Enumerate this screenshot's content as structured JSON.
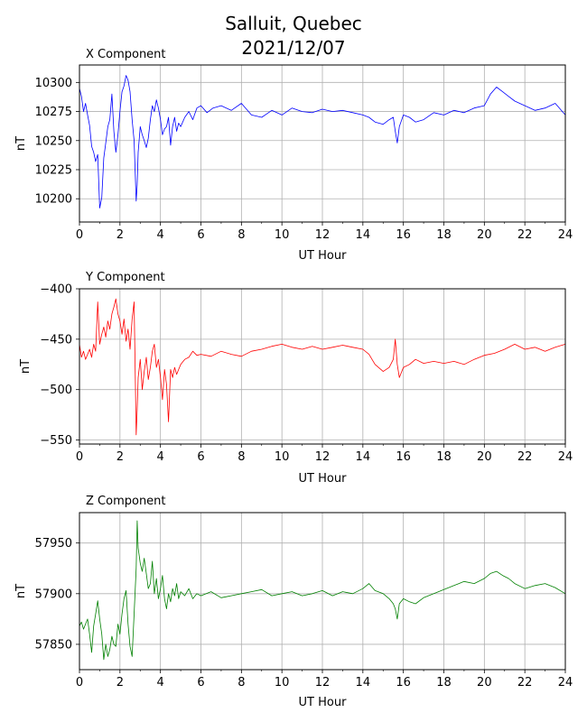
{
  "figure": {
    "title_line1": "Salluit, Quebec",
    "title_line2": "2021/12/07"
  },
  "chart_data": [
    {
      "type": "line",
      "title": "X Component",
      "xlabel": "UT Hour",
      "ylabel": "nT",
      "xlim": [
        0,
        24
      ],
      "ylim": [
        10180,
        10315
      ],
      "xticks": [
        0,
        2,
        4,
        6,
        8,
        10,
        12,
        14,
        16,
        18,
        20,
        22,
        24
      ],
      "yticks": [
        10200,
        10225,
        10250,
        10275,
        10300
      ],
      "grid": true,
      "color": "#0000ff",
      "x": [
        0,
        0.1,
        0.2,
        0.3,
        0.4,
        0.5,
        0.6,
        0.7,
        0.8,
        0.9,
        1.0,
        1.1,
        1.2,
        1.3,
        1.4,
        1.5,
        1.6,
        1.7,
        1.8,
        1.9,
        2.0,
        2.1,
        2.2,
        2.3,
        2.4,
        2.5,
        2.6,
        2.7,
        2.8,
        2.85,
        2.9,
        3.0,
        3.1,
        3.2,
        3.3,
        3.4,
        3.5,
        3.6,
        3.7,
        3.8,
        3.9,
        4.0,
        4.1,
        4.2,
        4.3,
        4.4,
        4.5,
        4.6,
        4.7,
        4.8,
        4.9,
        5.0,
        5.2,
        5.4,
        5.6,
        5.8,
        6.0,
        6.3,
        6.6,
        7.0,
        7.5,
        8.0,
        8.5,
        9.0,
        9.5,
        10.0,
        10.5,
        11.0,
        11.5,
        12.0,
        12.5,
        13.0,
        13.5,
        14.0,
        14.3,
        14.6,
        15.0,
        15.3,
        15.5,
        15.6,
        15.7,
        15.8,
        16.0,
        16.3,
        16.6,
        17.0,
        17.5,
        18.0,
        18.5,
        19.0,
        19.5,
        20.0,
        20.3,
        20.6,
        20.9,
        21.2,
        21.5,
        22.0,
        22.5,
        23.0,
        23.5,
        24.0
      ],
      "y": [
        10295,
        10288,
        10275,
        10282,
        10272,
        10263,
        10245,
        10240,
        10232,
        10238,
        10192,
        10201,
        10235,
        10248,
        10262,
        10268,
        10290,
        10258,
        10240,
        10255,
        10275,
        10292,
        10297,
        10306,
        10302,
        10292,
        10268,
        10250,
        10198,
        10212,
        10240,
        10262,
        10255,
        10250,
        10244,
        10252,
        10268,
        10280,
        10275,
        10285,
        10278,
        10268,
        10255,
        10260,
        10262,
        10270,
        10246,
        10262,
        10270,
        10258,
        10265,
        10262,
        10270,
        10275,
        10268,
        10278,
        10280,
        10274,
        10278,
        10280,
        10276,
        10282,
        10272,
        10270,
        10276,
        10272,
        10278,
        10275,
        10274,
        10277,
        10275,
        10276,
        10274,
        10272,
        10270,
        10266,
        10264,
        10268,
        10270,
        10258,
        10248,
        10262,
        10272,
        10270,
        10266,
        10268,
        10274,
        10272,
        10276,
        10274,
        10278,
        10280,
        10290,
        10296,
        10292,
        10288,
        10284,
        10280,
        10276,
        10278,
        10282,
        10272
      ]
    },
    {
      "type": "line",
      "title": "Y Component",
      "xlabel": "UT Hour",
      "ylabel": "nT",
      "xlim": [
        0,
        24
      ],
      "ylim": [
        -554,
        -400
      ],
      "xticks": [
        0,
        2,
        4,
        6,
        8,
        10,
        12,
        14,
        16,
        18,
        20,
        22,
        24
      ],
      "yticks": [
        -550,
        -500,
        -450,
        -400
      ],
      "grid": true,
      "color": "#ff0000",
      "x": [
        0,
        0.1,
        0.2,
        0.3,
        0.4,
        0.5,
        0.6,
        0.7,
        0.8,
        0.9,
        1.0,
        1.1,
        1.2,
        1.3,
        1.4,
        1.5,
        1.6,
        1.7,
        1.8,
        1.9,
        2.0,
        2.1,
        2.2,
        2.3,
        2.4,
        2.5,
        2.6,
        2.7,
        2.8,
        2.85,
        2.9,
        3.0,
        3.1,
        3.2,
        3.3,
        3.4,
        3.5,
        3.6,
        3.7,
        3.8,
        3.9,
        4.0,
        4.1,
        4.2,
        4.3,
        4.4,
        4.5,
        4.6,
        4.7,
        4.8,
        4.9,
        5.0,
        5.2,
        5.4,
        5.6,
        5.8,
        6.0,
        6.5,
        7.0,
        7.5,
        8.0,
        8.5,
        9.0,
        9.5,
        10.0,
        10.5,
        11.0,
        11.5,
        12.0,
        12.5,
        13.0,
        13.5,
        14.0,
        14.3,
        14.6,
        15.0,
        15.3,
        15.5,
        15.6,
        15.7,
        15.8,
        16.0,
        16.3,
        16.6,
        17.0,
        17.5,
        18.0,
        18.5,
        19.0,
        19.5,
        20.0,
        20.5,
        21.0,
        21.5,
        22.0,
        22.5,
        23.0,
        23.5,
        24.0
      ],
      "y": [
        -455,
        -468,
        -462,
        -470,
        -465,
        -460,
        -468,
        -455,
        -462,
        -413,
        -455,
        -445,
        -438,
        -448,
        -432,
        -440,
        -425,
        -418,
        -410,
        -425,
        -432,
        -445,
        -430,
        -452,
        -440,
        -460,
        -430,
        -413,
        -545,
        -520,
        -488,
        -470,
        -500,
        -482,
        -468,
        -490,
        -478,
        -462,
        -455,
        -478,
        -470,
        -488,
        -510,
        -480,
        -495,
        -532,
        -480,
        -488,
        -478,
        -485,
        -480,
        -475,
        -470,
        -468,
        -462,
        -466,
        -465,
        -467,
        -462,
        -465,
        -467,
        -462,
        -460,
        -457,
        -455,
        -458,
        -460,
        -457,
        -460,
        -458,
        -456,
        -458,
        -460,
        -465,
        -475,
        -482,
        -478,
        -470,
        -450,
        -475,
        -488,
        -478,
        -475,
        -470,
        -474,
        -472,
        -474,
        -472,
        -475,
        -470,
        -466,
        -464,
        -460,
        -455,
        -460,
        -458,
        -462,
        -458,
        -455
      ]
    },
    {
      "type": "line",
      "title": "Z Component",
      "xlabel": "UT Hour",
      "ylabel": "nT",
      "xlim": [
        0,
        24
      ],
      "ylim": [
        57825,
        57980
      ],
      "xticks": [
        0,
        2,
        4,
        6,
        8,
        10,
        12,
        14,
        16,
        18,
        20,
        22,
        24
      ],
      "yticks": [
        57850,
        57900,
        57950
      ],
      "grid": true,
      "color": "#008000",
      "x": [
        0,
        0.1,
        0.2,
        0.3,
        0.4,
        0.5,
        0.6,
        0.7,
        0.8,
        0.9,
        1.0,
        1.1,
        1.2,
        1.3,
        1.4,
        1.5,
        1.6,
        1.7,
        1.8,
        1.9,
        2.0,
        2.1,
        2.2,
        2.3,
        2.4,
        2.5,
        2.6,
        2.7,
        2.8,
        2.85,
        2.9,
        3.0,
        3.1,
        3.2,
        3.3,
        3.4,
        3.5,
        3.6,
        3.7,
        3.8,
        3.9,
        4.0,
        4.1,
        4.2,
        4.3,
        4.4,
        4.5,
        4.6,
        4.7,
        4.8,
        4.9,
        5.0,
        5.2,
        5.4,
        5.6,
        5.8,
        6.0,
        6.5,
        7.0,
        7.5,
        8.0,
        8.5,
        9.0,
        9.5,
        10.0,
        10.5,
        11.0,
        11.5,
        12.0,
        12.5,
        13.0,
        13.5,
        14.0,
        14.3,
        14.6,
        15.0,
        15.3,
        15.5,
        15.6,
        15.7,
        15.8,
        16.0,
        16.3,
        16.6,
        17.0,
        17.5,
        18.0,
        18.5,
        19.0,
        19.5,
        20.0,
        20.3,
        20.6,
        20.9,
        21.2,
        21.5,
        22.0,
        22.5,
        23.0,
        23.5,
        24.0
      ],
      "y": [
        57868,
        57872,
        57865,
        57870,
        57875,
        57860,
        57842,
        57868,
        57880,
        57893,
        57875,
        57860,
        57835,
        57850,
        57838,
        57845,
        57858,
        57850,
        57848,
        57870,
        57860,
        57880,
        57895,
        57903,
        57870,
        57848,
        57838,
        57880,
        57925,
        57972,
        57945,
        57930,
        57922,
        57935,
        57920,
        57905,
        57910,
        57932,
        57900,
        57915,
        57895,
        57905,
        57918,
        57895,
        57885,
        57900,
        57892,
        57905,
        57898,
        57910,
        57895,
        57902,
        57898,
        57905,
        57895,
        57900,
        57898,
        57902,
        57896,
        57898,
        57900,
        57902,
        57904,
        57898,
        57900,
        57902,
        57898,
        57900,
        57903,
        57898,
        57902,
        57900,
        57905,
        57910,
        57903,
        57900,
        57895,
        57890,
        57885,
        57875,
        57890,
        57895,
        57892,
        57890,
        57896,
        57900,
        57904,
        57908,
        57912,
        57910,
        57915,
        57920,
        57922,
        57918,
        57915,
        57910,
        57905,
        57908,
        57910,
        57906,
        57900
      ]
    }
  ]
}
